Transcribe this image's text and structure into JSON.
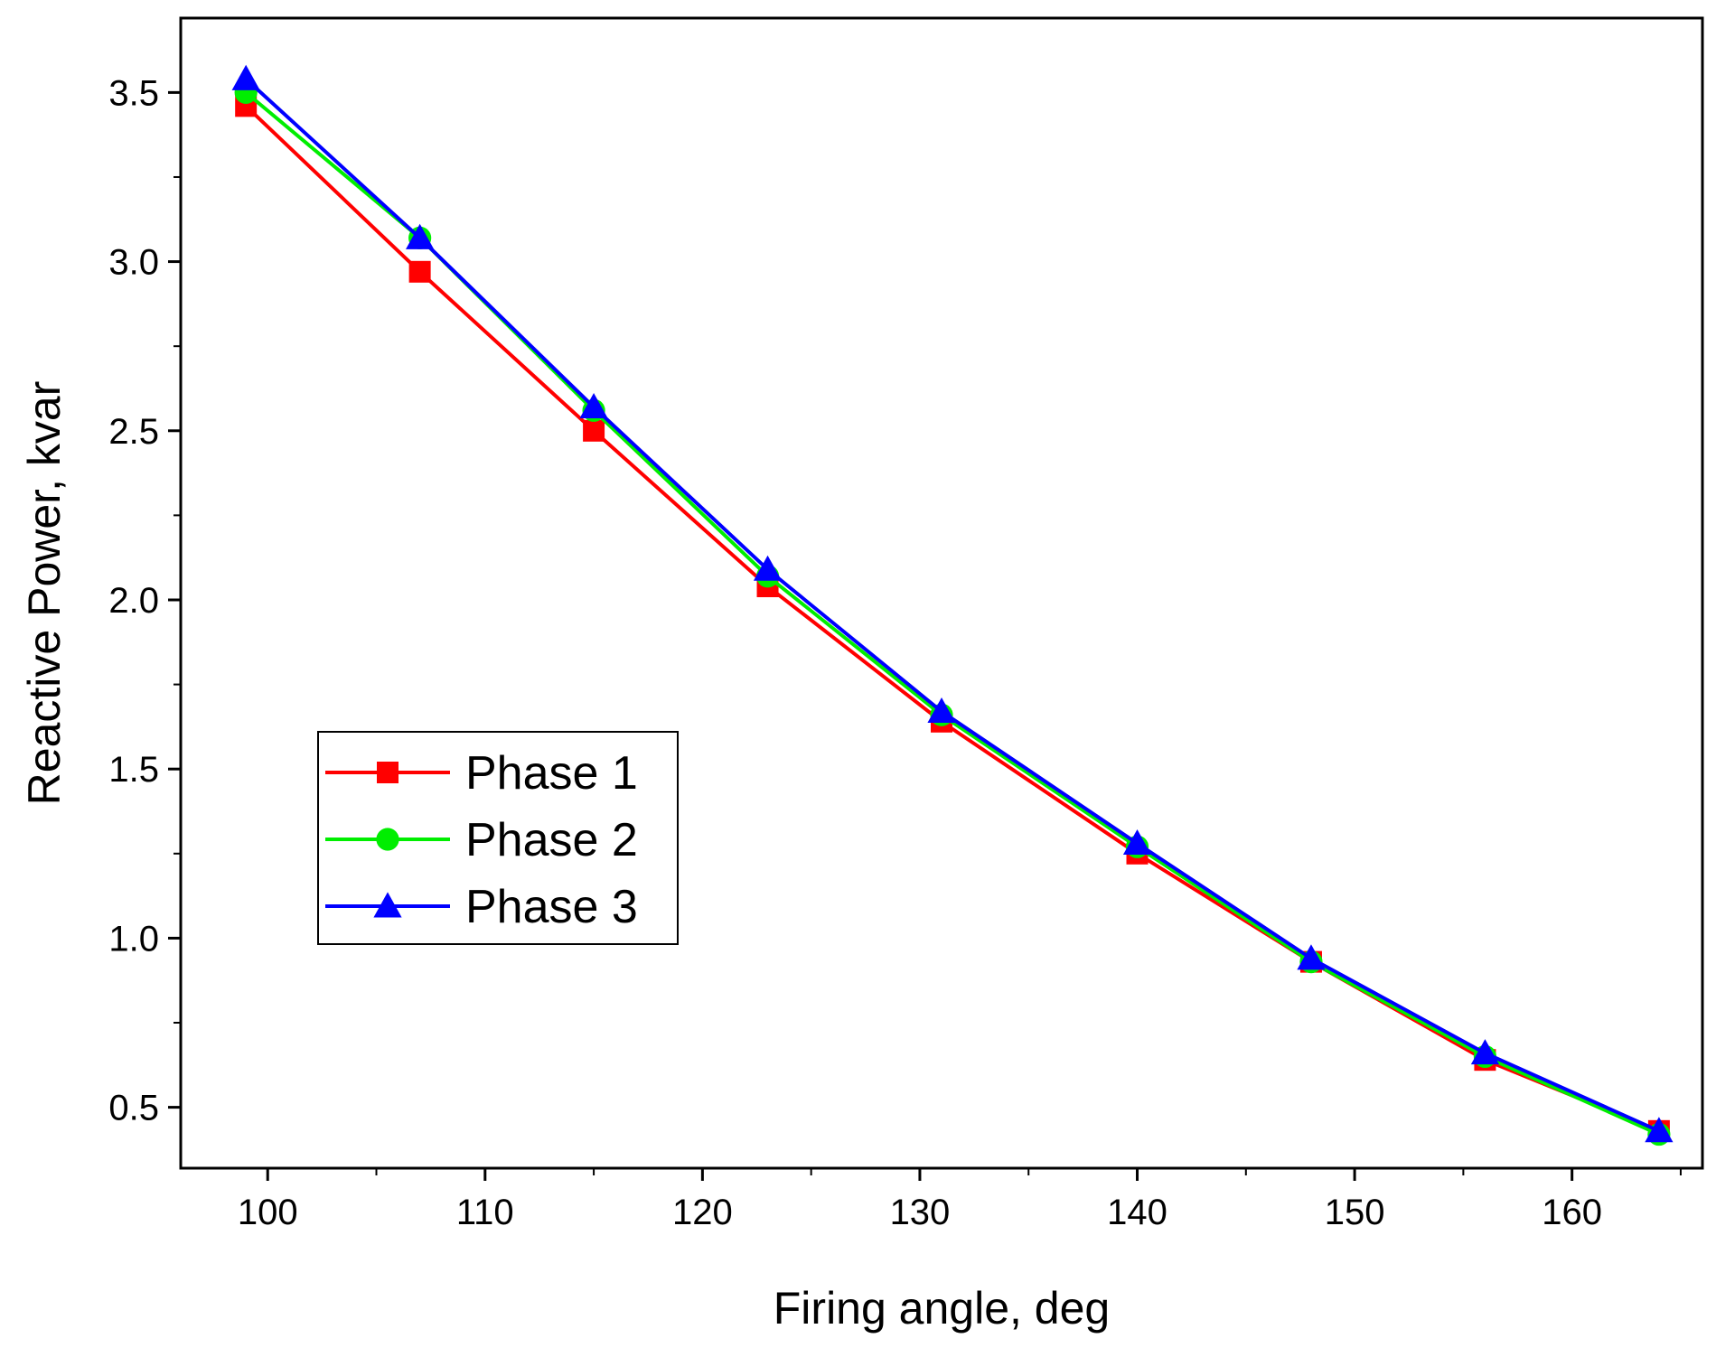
{
  "chart_data": {
    "type": "line",
    "title": "",
    "xlabel": "Firing angle, deg",
    "ylabel": "Reactive Power, kvar",
    "xlim": [
      96,
      166
    ],
    "ylim": [
      0.32,
      3.72
    ],
    "xticks": [
      100,
      110,
      120,
      130,
      140,
      150,
      160
    ],
    "xtick_labels": [
      "100",
      "110",
      "120",
      "130",
      "140",
      "150",
      "160"
    ],
    "yticks": [
      0.5,
      1.0,
      1.5,
      2.0,
      2.5,
      3.0,
      3.5
    ],
    "ytick_labels": [
      "0.5",
      "1.0",
      "1.5",
      "2.0",
      "2.5",
      "3.0",
      "3.5"
    ],
    "grid": false,
    "legend_position": "lower-left",
    "x": [
      99,
      107,
      115,
      123,
      131,
      140,
      148,
      156,
      164
    ],
    "series": [
      {
        "name": "Phase 1",
        "color": "#ff0000",
        "marker": "square",
        "values": [
          3.46,
          2.97,
          2.5,
          2.04,
          1.64,
          1.25,
          0.93,
          0.64,
          0.43
        ]
      },
      {
        "name": "Phase 2",
        "color": "#00ee00",
        "marker": "circle",
        "values": [
          3.5,
          3.07,
          2.56,
          2.07,
          1.66,
          1.27,
          0.93,
          0.65,
          0.42
        ]
      },
      {
        "name": "Phase 3",
        "color": "#0000ff",
        "marker": "triangle",
        "values": [
          3.54,
          3.07,
          2.57,
          2.09,
          1.67,
          1.28,
          0.94,
          0.66,
          0.43
        ]
      }
    ]
  }
}
